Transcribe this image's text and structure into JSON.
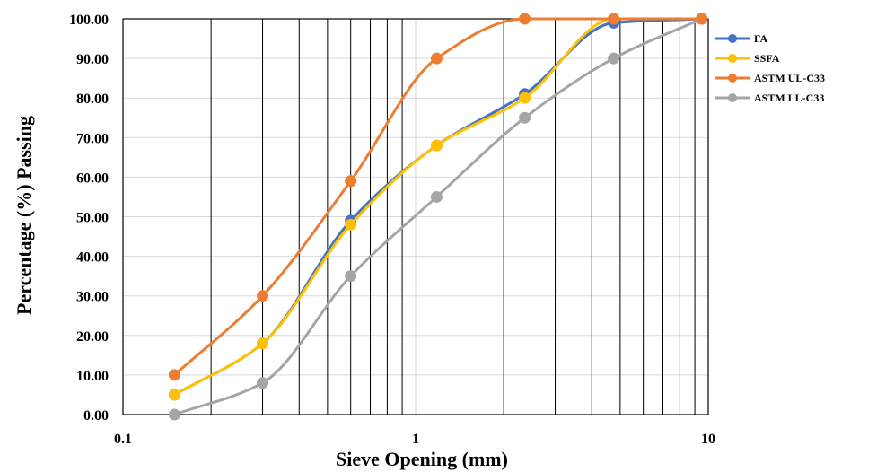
{
  "chart_data": {
    "type": "line",
    "xlabel": "Sieve Opening (mm)",
    "ylabel": "Percentage (%) Passing",
    "x_scale": "log",
    "xlim": [
      0.1,
      10
    ],
    "ylim": [
      0,
      100
    ],
    "x_tick_labels": [
      "0.1",
      "1",
      "10"
    ],
    "y_tick_labels": [
      "0.00",
      "10.00",
      "20.00",
      "30.00",
      "40.00",
      "50.00",
      "60.00",
      "70.00",
      "80.00",
      "90.00",
      "100.00"
    ],
    "grid": "vertical log grid and horizontal gridlines",
    "legend_position": "right",
    "series": [
      {
        "name": "FA",
        "color": "#4472C4",
        "x": [
          0.15,
          0.3,
          0.6,
          1.18,
          2.36,
          4.75,
          9.5
        ],
        "y": [
          5,
          18,
          49,
          68,
          81,
          99,
          100
        ]
      },
      {
        "name": "SSFA",
        "color": "#FFC000",
        "x": [
          0.15,
          0.3,
          0.6,
          1.18,
          2.36,
          4.75,
          9.5
        ],
        "y": [
          5,
          18,
          48,
          68,
          80,
          100,
          100
        ]
      },
      {
        "name": "ASTM UL-C33",
        "color": "#ED7D31",
        "x": [
          0.15,
          0.3,
          0.6,
          1.18,
          2.36,
          4.75,
          9.5
        ],
        "y": [
          10,
          30,
          59,
          90,
          100,
          100,
          100
        ]
      },
      {
        "name": "ASTM LL-C33",
        "color": "#A5A5A5",
        "x": [
          0.15,
          0.3,
          0.6,
          1.18,
          2.36,
          4.75,
          9.5
        ],
        "y": [
          0,
          8,
          35,
          55,
          75,
          90,
          100
        ]
      }
    ]
  }
}
